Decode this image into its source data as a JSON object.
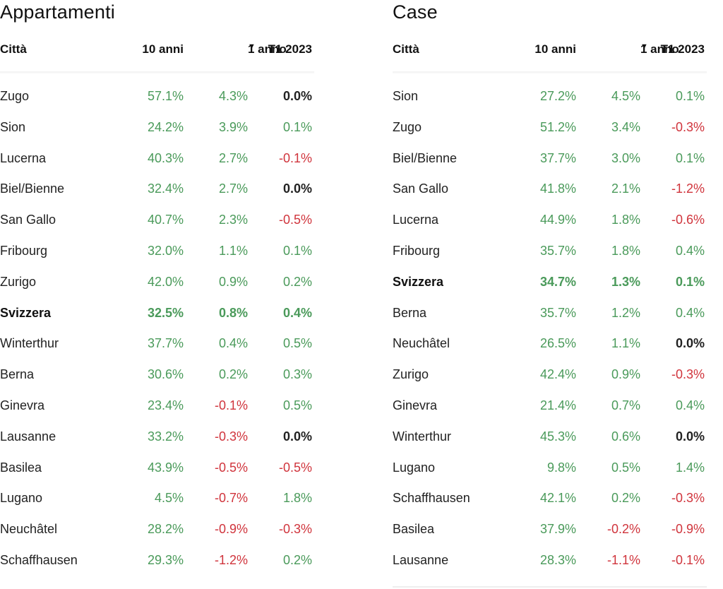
{
  "colors": {
    "positive": "#4a9a5a",
    "negative": "#d0343c",
    "neutral": "#222222"
  },
  "sort_icon": "triangle-down-icon",
  "tables": [
    {
      "title": "Appartamenti",
      "headers": {
        "city": "Città",
        "ten_years": "10 anni",
        "one_year": "1 anno",
        "quarter": "T1 2023"
      },
      "rows": [
        {
          "city": "Zugo",
          "ten": "57.1%",
          "one": "4.3%",
          "q": "0.0%"
        },
        {
          "city": "Sion",
          "ten": "24.2%",
          "one": "3.9%",
          "q": "0.1%"
        },
        {
          "city": "Lucerna",
          "ten": "40.3%",
          "one": "2.7%",
          "q": "-0.1%"
        },
        {
          "city": "Biel/Bienne",
          "ten": "32.4%",
          "one": "2.7%",
          "q": "0.0%"
        },
        {
          "city": "San Gallo",
          "ten": "40.7%",
          "one": "2.3%",
          "q": "-0.5%"
        },
        {
          "city": "Fribourg",
          "ten": "32.0%",
          "one": "1.1%",
          "q": "0.1%"
        },
        {
          "city": "Zurigo",
          "ten": "42.0%",
          "one": "0.9%",
          "q": "0.2%"
        },
        {
          "city": "Svizzera",
          "ten": "32.5%",
          "one": "0.8%",
          "q": "0.4%",
          "bold": true
        },
        {
          "city": "Winterthur",
          "ten": "37.7%",
          "one": "0.4%",
          "q": "0.5%"
        },
        {
          "city": "Berna",
          "ten": "30.6%",
          "one": "0.2%",
          "q": "0.3%"
        },
        {
          "city": "Ginevra",
          "ten": "23.4%",
          "one": "-0.1%",
          "q": "0.5%"
        },
        {
          "city": "Lausanne",
          "ten": "33.2%",
          "one": "-0.3%",
          "q": "0.0%"
        },
        {
          "city": "Basilea",
          "ten": "43.9%",
          "one": "-0.5%",
          "q": "-0.5%"
        },
        {
          "city": "Lugano",
          "ten": "4.5%",
          "one": "-0.7%",
          "q": "1.8%"
        },
        {
          "city": "Neuchâtel",
          "ten": "28.2%",
          "one": "-0.9%",
          "q": "-0.3%"
        },
        {
          "city": "Schaffhausen",
          "ten": "29.3%",
          "one": "-1.2%",
          "q": "0.2%"
        }
      ]
    },
    {
      "title": "Case",
      "headers": {
        "city": "Città",
        "ten_years": "10 anni",
        "one_year": "1 anno",
        "quarter": "T1 2023"
      },
      "rows": [
        {
          "city": "Sion",
          "ten": "27.2%",
          "one": "4.5%",
          "q": "0.1%"
        },
        {
          "city": "Zugo",
          "ten": "51.2%",
          "one": "3.4%",
          "q": "-0.3%"
        },
        {
          "city": "Biel/Bienne",
          "ten": "37.7%",
          "one": "3.0%",
          "q": "0.1%"
        },
        {
          "city": "San Gallo",
          "ten": "41.8%",
          "one": "2.1%",
          "q": "-1.2%"
        },
        {
          "city": "Lucerna",
          "ten": "44.9%",
          "one": "1.8%",
          "q": "-0.6%"
        },
        {
          "city": "Fribourg",
          "ten": "35.7%",
          "one": "1.8%",
          "q": "0.4%"
        },
        {
          "city": "Svizzera",
          "ten": "34.7%",
          "one": "1.3%",
          "q": "0.1%",
          "bold": true
        },
        {
          "city": "Berna",
          "ten": "35.7%",
          "one": "1.2%",
          "q": "0.4%"
        },
        {
          "city": "Neuchâtel",
          "ten": "26.5%",
          "one": "1.1%",
          "q": "0.0%"
        },
        {
          "city": "Zurigo",
          "ten": "42.4%",
          "one": "0.9%",
          "q": "-0.3%"
        },
        {
          "city": "Ginevra",
          "ten": "21.4%",
          "one": "0.7%",
          "q": "0.4%"
        },
        {
          "city": "Winterthur",
          "ten": "45.3%",
          "one": "0.6%",
          "q": "0.0%"
        },
        {
          "city": "Lugano",
          "ten": "9.8%",
          "one": "0.5%",
          "q": "1.4%"
        },
        {
          "city": "Schaffhausen",
          "ten": "42.1%",
          "one": "0.2%",
          "q": "-0.3%"
        },
        {
          "city": "Basilea",
          "ten": "37.9%",
          "one": "-0.2%",
          "q": "-0.9%"
        },
        {
          "city": "Lausanne",
          "ten": "28.3%",
          "one": "-1.1%",
          "q": "-0.1%"
        }
      ]
    }
  ]
}
